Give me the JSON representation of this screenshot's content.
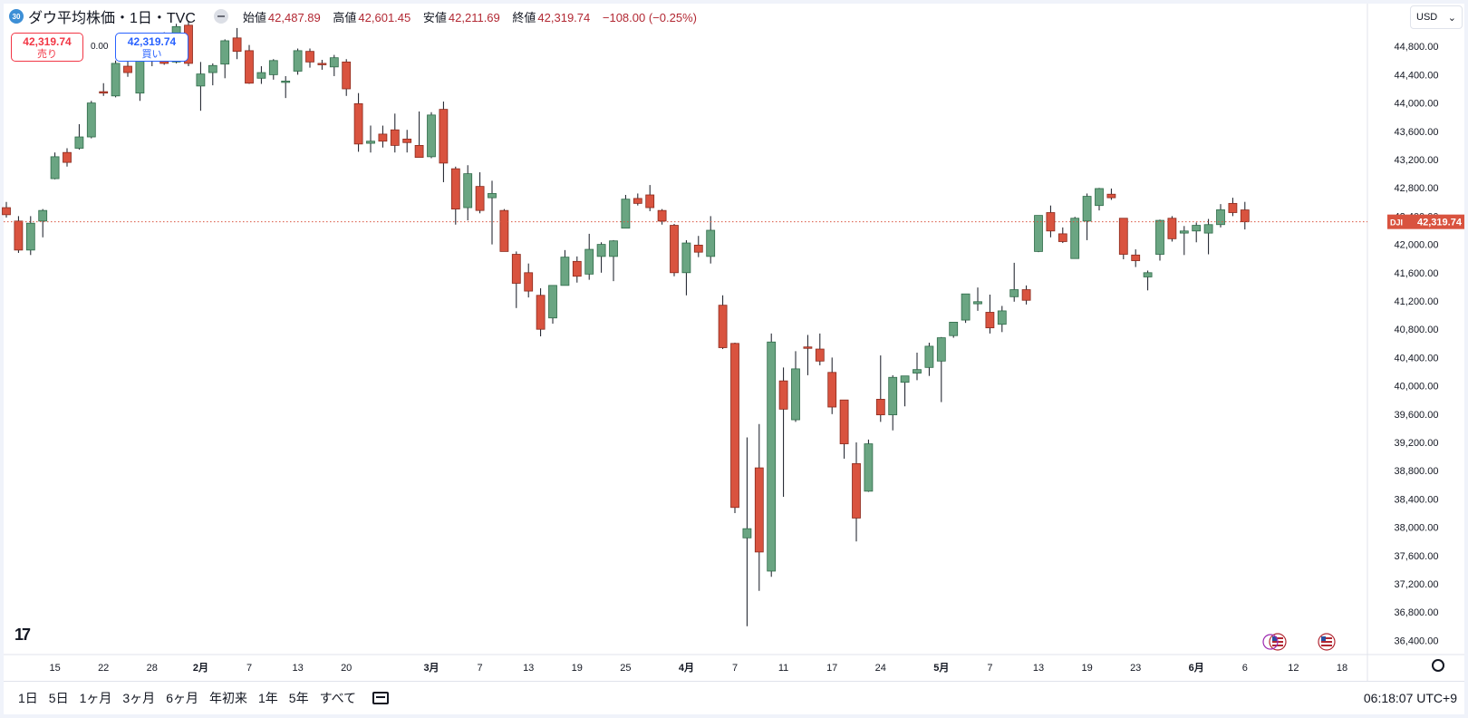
{
  "header": {
    "symbol_badge": "30",
    "title": "ダウ平均株価・1日・TVC",
    "ohlc": [
      {
        "label": "始値",
        "value": "42,487.89"
      },
      {
        "label": "高値",
        "value": "42,601.45"
      },
      {
        "label": "安値",
        "value": "42,211.69"
      },
      {
        "label": "終値",
        "value": "42,319.74"
      },
      {
        "label": "",
        "value": "−108.00 (−0.25%)"
      }
    ]
  },
  "trade": {
    "sell_price": "42,319.74",
    "sell_label": "売り",
    "spread": "0.00",
    "buy_price": "42,319.74",
    "buy_label": "買い"
  },
  "currency": "USD",
  "price_tag": {
    "symbol": "DJI",
    "value": "42,319.74"
  },
  "range_buttons": [
    "1日",
    "5日",
    "1ヶ月",
    "3ヶ月",
    "6ヶ月",
    "年初来",
    "1年",
    "5年",
    "すべて"
  ],
  "clock": "06:18:07 UTC+9",
  "colors": {
    "up": "#6aa582",
    "down": "#d9533f",
    "up_border": "#2f6b49",
    "down_border": "#8a2a1d"
  },
  "chart_data": {
    "type": "candlestick",
    "ylim": [
      36200,
      45200
    ],
    "y_ticks": [
      36400,
      36800,
      37200,
      37600,
      38000,
      38400,
      38800,
      39200,
      39600,
      40000,
      40400,
      40800,
      41200,
      41600,
      42000,
      42400,
      42800,
      43200,
      43600,
      44000,
      44400,
      44800
    ],
    "y_tick_labels": [
      "36,400.00",
      "36,800.00",
      "37,200.00",
      "37,600.00",
      "38,000.00",
      "38,400.00",
      "38,800.00",
      "39,200.00",
      "39,600.00",
      "40,000.00",
      "40,400.00",
      "40,800.00",
      "41,200.00",
      "41,600.00",
      "42,000.00",
      "42,400.00",
      "42,800.00",
      "43,200.00",
      "43,600.00",
      "44,000.00",
      "44,400.00",
      "44,800.00"
    ],
    "x_labels": [
      {
        "label": "15",
        "index": 4
      },
      {
        "label": "22",
        "index": 8
      },
      {
        "label": "28",
        "index": 12
      },
      {
        "label": "2月",
        "index": 16
      },
      {
        "label": "7",
        "index": 20
      },
      {
        "label": "13",
        "index": 24
      },
      {
        "label": "20",
        "index": 28
      },
      {
        "label": "3月",
        "index": 35
      },
      {
        "label": "7",
        "index": 39
      },
      {
        "label": "13",
        "index": 43
      },
      {
        "label": "19",
        "index": 47
      },
      {
        "label": "25",
        "index": 51
      },
      {
        "label": "4月",
        "index": 56
      },
      {
        "label": "7",
        "index": 60
      },
      {
        "label": "11",
        "index": 64
      },
      {
        "label": "17",
        "index": 68
      },
      {
        "label": "24",
        "index": 72
      },
      {
        "label": "5月",
        "index": 77
      },
      {
        "label": "7",
        "index": 81
      },
      {
        "label": "13",
        "index": 85
      },
      {
        "label": "19",
        "index": 89
      },
      {
        "label": "23",
        "index": 93
      },
      {
        "label": "6月",
        "index": 98
      },
      {
        "label": "6",
        "index": 102
      },
      {
        "label": "12",
        "index": 106
      },
      {
        "label": "18",
        "index": 110
      }
    ],
    "candles": [
      {
        "o": 42520,
        "h": 42600,
        "l": 42380,
        "c": 42420
      },
      {
        "o": 42330,
        "h": 42400,
        "l": 41880,
        "c": 41920
      },
      {
        "o": 41920,
        "h": 42400,
        "l": 41850,
        "c": 42300
      },
      {
        "o": 42330,
        "h": 42500,
        "l": 42100,
        "c": 42480
      },
      {
        "o": 42930,
        "h": 43300,
        "l": 42920,
        "c": 43240
      },
      {
        "o": 43300,
        "h": 43360,
        "l": 43100,
        "c": 43160
      },
      {
        "o": 43360,
        "h": 43700,
        "l": 43340,
        "c": 43520
      },
      {
        "o": 43520,
        "h": 44030,
        "l": 43500,
        "c": 44000
      },
      {
        "o": 44160,
        "h": 44280,
        "l": 44100,
        "c": 44140
      },
      {
        "o": 44100,
        "h": 44600,
        "l": 44080,
        "c": 44560
      },
      {
        "o": 44520,
        "h": 44700,
        "l": 44370,
        "c": 44430
      },
      {
        "o": 44140,
        "h": 44800,
        "l": 44030,
        "c": 44660
      },
      {
        "o": 44680,
        "h": 44960,
        "l": 44520,
        "c": 44880
      },
      {
        "o": 44880,
        "h": 45000,
        "l": 44540,
        "c": 44560
      },
      {
        "o": 44580,
        "h": 45120,
        "l": 44560,
        "c": 45080
      },
      {
        "o": 45100,
        "h": 45150,
        "l": 44520,
        "c": 44560
      },
      {
        "o": 44240,
        "h": 44580,
        "l": 43890,
        "c": 44410
      },
      {
        "o": 44430,
        "h": 44560,
        "l": 44250,
        "c": 44530
      },
      {
        "o": 44550,
        "h": 44900,
        "l": 44350,
        "c": 44880
      },
      {
        "o": 44920,
        "h": 45060,
        "l": 44620,
        "c": 44730
      },
      {
        "o": 44740,
        "h": 44820,
        "l": 44270,
        "c": 44280
      },
      {
        "o": 44350,
        "h": 44520,
        "l": 44270,
        "c": 44430
      },
      {
        "o": 44400,
        "h": 44620,
        "l": 44330,
        "c": 44600
      },
      {
        "o": 44300,
        "h": 44380,
        "l": 44070,
        "c": 44310
      },
      {
        "o": 44450,
        "h": 44770,
        "l": 44400,
        "c": 44740
      },
      {
        "o": 44730,
        "h": 44770,
        "l": 44500,
        "c": 44580
      },
      {
        "o": 44560,
        "h": 44610,
        "l": 44470,
        "c": 44540
      },
      {
        "o": 44510,
        "h": 44680,
        "l": 44380,
        "c": 44640
      },
      {
        "o": 44580,
        "h": 44620,
        "l": 44100,
        "c": 44200
      },
      {
        "o": 43990,
        "h": 44140,
        "l": 43310,
        "c": 43420
      },
      {
        "o": 43430,
        "h": 43680,
        "l": 43300,
        "c": 43460
      },
      {
        "o": 43560,
        "h": 43680,
        "l": 43370,
        "c": 43460
      },
      {
        "o": 43620,
        "h": 43850,
        "l": 43300,
        "c": 43400
      },
      {
        "o": 43490,
        "h": 43620,
        "l": 43300,
        "c": 43440
      },
      {
        "o": 43400,
        "h": 43880,
        "l": 43280,
        "c": 43230
      },
      {
        "o": 43240,
        "h": 43870,
        "l": 43220,
        "c": 43830
      },
      {
        "o": 43910,
        "h": 44020,
        "l": 42880,
        "c": 43150
      },
      {
        "o": 43070,
        "h": 43100,
        "l": 42280,
        "c": 42500
      },
      {
        "o": 42520,
        "h": 43120,
        "l": 42340,
        "c": 43000
      },
      {
        "o": 42820,
        "h": 43020,
        "l": 42440,
        "c": 42480
      },
      {
        "o": 42660,
        "h": 42900,
        "l": 42000,
        "c": 42720
      },
      {
        "o": 42480,
        "h": 42500,
        "l": 41900,
        "c": 41900
      },
      {
        "o": 41860,
        "h": 41900,
        "l": 41100,
        "c": 41450
      },
      {
        "o": 41600,
        "h": 41730,
        "l": 41250,
        "c": 41340
      },
      {
        "o": 41280,
        "h": 41380,
        "l": 40700,
        "c": 40800
      },
      {
        "o": 40960,
        "h": 41420,
        "l": 40880,
        "c": 41420
      },
      {
        "o": 41420,
        "h": 41920,
        "l": 41420,
        "c": 41820
      },
      {
        "o": 41760,
        "h": 41830,
        "l": 41460,
        "c": 41550
      },
      {
        "o": 41580,
        "h": 42150,
        "l": 41500,
        "c": 41930
      },
      {
        "o": 41830,
        "h": 42030,
        "l": 41600,
        "c": 42000
      },
      {
        "o": 41830,
        "h": 42060,
        "l": 41480,
        "c": 42050
      },
      {
        "o": 42230,
        "h": 42700,
        "l": 42230,
        "c": 42640
      },
      {
        "o": 42650,
        "h": 42720,
        "l": 42550,
        "c": 42580
      },
      {
        "o": 42700,
        "h": 42840,
        "l": 42470,
        "c": 42520
      },
      {
        "o": 42480,
        "h": 42500,
        "l": 42280,
        "c": 42330
      },
      {
        "o": 42270,
        "h": 42290,
        "l": 41550,
        "c": 41600
      },
      {
        "o": 41600,
        "h": 42060,
        "l": 41280,
        "c": 42020
      },
      {
        "o": 41990,
        "h": 42120,
        "l": 41820,
        "c": 41890
      },
      {
        "o": 41830,
        "h": 42400,
        "l": 41730,
        "c": 42200
      },
      {
        "o": 41140,
        "h": 41280,
        "l": 40520,
        "c": 40540
      },
      {
        "o": 40600,
        "h": 40610,
        "l": 38200,
        "c": 38280
      },
      {
        "o": 37850,
        "h": 39270,
        "l": 36600,
        "c": 37980
      },
      {
        "o": 38840,
        "h": 39460,
        "l": 37100,
        "c": 37650
      },
      {
        "o": 37380,
        "h": 40740,
        "l": 37300,
        "c": 40620
      },
      {
        "o": 40070,
        "h": 40260,
        "l": 38430,
        "c": 39670
      },
      {
        "o": 39520,
        "h": 40490,
        "l": 39490,
        "c": 40240
      },
      {
        "o": 40550,
        "h": 40720,
        "l": 40150,
        "c": 40530
      },
      {
        "o": 40520,
        "h": 40740,
        "l": 40290,
        "c": 40350
      },
      {
        "o": 40190,
        "h": 40400,
        "l": 39600,
        "c": 39700
      },
      {
        "o": 39800,
        "h": 39800,
        "l": 38970,
        "c": 39180
      },
      {
        "o": 38900,
        "h": 39200,
        "l": 37800,
        "c": 38130
      },
      {
        "o": 38510,
        "h": 39240,
        "l": 38500,
        "c": 39180
      },
      {
        "o": 39810,
        "h": 40430,
        "l": 39490,
        "c": 39590
      },
      {
        "o": 39590,
        "h": 40150,
        "l": 39370,
        "c": 40120
      },
      {
        "o": 40050,
        "h": 40130,
        "l": 39710,
        "c": 40140
      },
      {
        "o": 40180,
        "h": 40470,
        "l": 40080,
        "c": 40230
      },
      {
        "o": 40260,
        "h": 40610,
        "l": 40140,
        "c": 40560
      },
      {
        "o": 40350,
        "h": 40690,
        "l": 39770,
        "c": 40680
      },
      {
        "o": 40710,
        "h": 40900,
        "l": 40680,
        "c": 40900
      },
      {
        "o": 40930,
        "h": 41300,
        "l": 40890,
        "c": 41300
      },
      {
        "o": 41160,
        "h": 41390,
        "l": 41060,
        "c": 41190
      },
      {
        "o": 41040,
        "h": 41290,
        "l": 40740,
        "c": 40820
      },
      {
        "o": 40870,
        "h": 41130,
        "l": 40760,
        "c": 41060
      },
      {
        "o": 41260,
        "h": 41740,
        "l": 41190,
        "c": 41360
      },
      {
        "o": 41360,
        "h": 41420,
        "l": 41150,
        "c": 41210
      },
      {
        "o": 41900,
        "h": 42400,
        "l": 41890,
        "c": 42410
      },
      {
        "o": 42450,
        "h": 42550,
        "l": 42100,
        "c": 42190
      },
      {
        "o": 42150,
        "h": 42240,
        "l": 42020,
        "c": 42040
      },
      {
        "o": 41800,
        "h": 42390,
        "l": 41800,
        "c": 42370
      },
      {
        "o": 42330,
        "h": 42720,
        "l": 42060,
        "c": 42680
      },
      {
        "o": 42550,
        "h": 42800,
        "l": 42480,
        "c": 42790
      },
      {
        "o": 42710,
        "h": 42790,
        "l": 42630,
        "c": 42660
      },
      {
        "o": 42370,
        "h": 42370,
        "l": 41790,
        "c": 41860
      },
      {
        "o": 41850,
        "h": 41930,
        "l": 41680,
        "c": 41770
      },
      {
        "o": 41540,
        "h": 41630,
        "l": 41350,
        "c": 41600
      },
      {
        "o": 41860,
        "h": 42350,
        "l": 41770,
        "c": 42340
      },
      {
        "o": 42370,
        "h": 42400,
        "l": 42040,
        "c": 42080
      },
      {
        "o": 42160,
        "h": 42260,
        "l": 41850,
        "c": 42190
      },
      {
        "o": 42190,
        "h": 42310,
        "l": 42030,
        "c": 42270
      },
      {
        "o": 42160,
        "h": 42360,
        "l": 41860,
        "c": 42280
      },
      {
        "o": 42280,
        "h": 42570,
        "l": 42240,
        "c": 42490
      },
      {
        "o": 42580,
        "h": 42660,
        "l": 42400,
        "c": 42450
      },
      {
        "o": 42487.89,
        "h": 42601.45,
        "l": 42211.69,
        "c": 42319.74
      }
    ]
  }
}
